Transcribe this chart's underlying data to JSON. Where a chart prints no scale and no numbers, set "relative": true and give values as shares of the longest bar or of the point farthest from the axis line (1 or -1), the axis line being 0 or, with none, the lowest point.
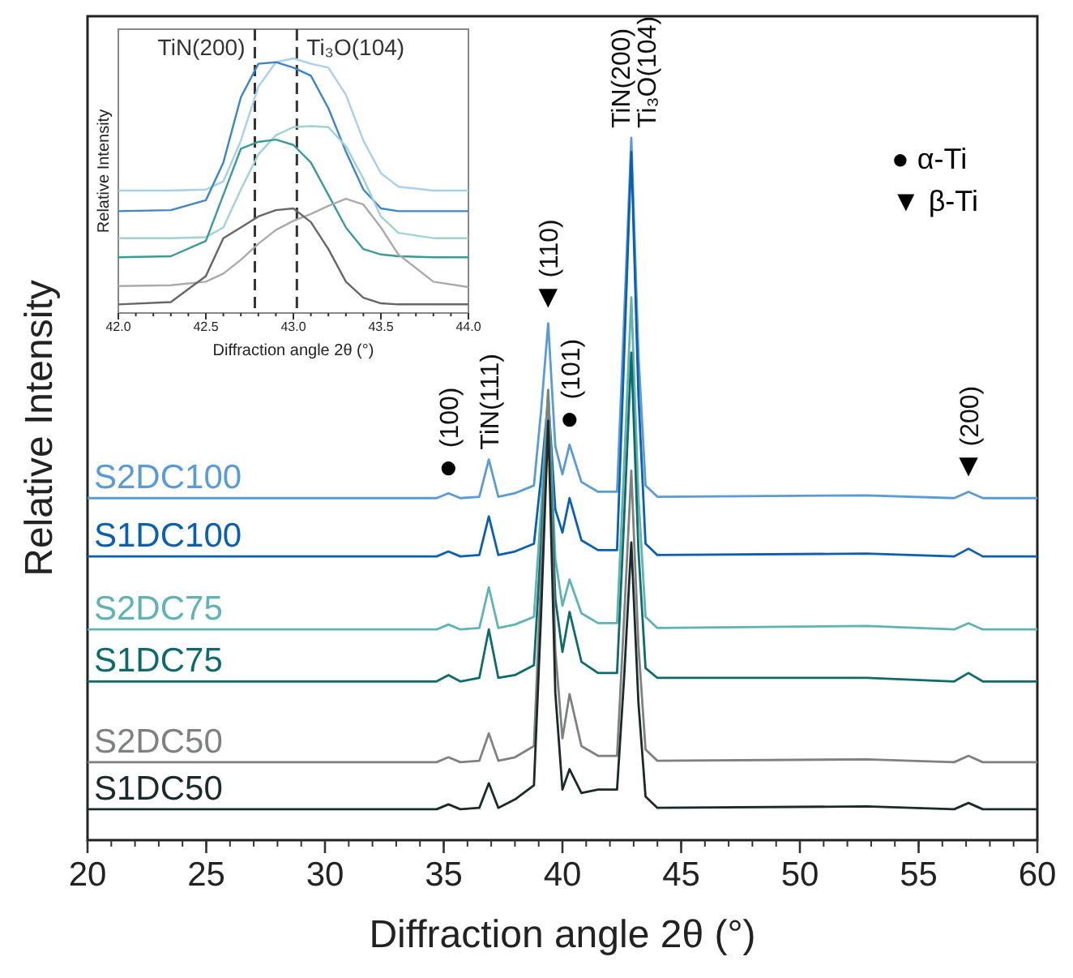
{
  "chart_data": [
    {
      "type": "line",
      "xlabel": "Diffraction angle 2θ (°)",
      "ylabel": "Relative Intensity",
      "relative": true,
      "xlim": [
        20,
        60
      ],
      "xticks": [
        20,
        25,
        30,
        35,
        40,
        45,
        50,
        55,
        60
      ],
      "x": [
        20,
        34.7,
        35.2,
        35.7,
        36.5,
        36.9,
        37.3,
        38.0,
        38.8,
        39.1,
        39.4,
        39.7,
        40.0,
        40.3,
        40.8,
        41.5,
        42.3,
        42.6,
        42.9,
        43.2,
        43.5,
        44.0,
        52.8,
        56.5,
        57.1,
        57.7,
        60
      ],
      "series": [
        {
          "name": "S2DC100",
          "color": "#5b9bd5",
          "values": [
            0.487,
            0.487,
            0.494,
            0.487,
            0.489,
            0.542,
            0.489,
            0.494,
            0.505,
            0.611,
            0.736,
            0.561,
            0.521,
            0.563,
            0.51,
            0.496,
            0.496,
            0.745,
            1.0,
            0.692,
            0.505,
            0.489,
            0.491,
            0.487,
            0.496,
            0.487,
            0.487
          ]
        },
        {
          "name": "S1DC100",
          "color": "#0b5fb0",
          "values": [
            0.404,
            0.404,
            0.411,
            0.404,
            0.406,
            0.461,
            0.406,
            0.411,
            0.422,
            0.517,
            0.63,
            0.471,
            0.438,
            0.487,
            0.427,
            0.413,
            0.413,
            0.692,
            0.98,
            0.634,
            0.422,
            0.406,
            0.408,
            0.404,
            0.415,
            0.404,
            0.404
          ]
        },
        {
          "name": "S2DC75",
          "color": "#5fb3b3",
          "values": [
            0.3,
            0.3,
            0.307,
            0.3,
            0.302,
            0.36,
            0.302,
            0.307,
            0.318,
            0.471,
            0.641,
            0.401,
            0.334,
            0.371,
            0.323,
            0.309,
            0.309,
            0.535,
            0.773,
            0.489,
            0.318,
            0.302,
            0.305,
            0.3,
            0.309,
            0.3,
            0.3
          ]
        },
        {
          "name": "S1DC75",
          "color": "#0e6b6b",
          "values": [
            0.226,
            0.226,
            0.235,
            0.226,
            0.231,
            0.3,
            0.231,
            0.235,
            0.249,
            0.422,
            0.618,
            0.344,
            0.268,
            0.325,
            0.254,
            0.238,
            0.238,
            0.459,
            0.694,
            0.413,
            0.245,
            0.231,
            0.231,
            0.226,
            0.238,
            0.226,
            0.226
          ]
        },
        {
          "name": "S2DC50",
          "color": "#7f8080",
          "values": [
            0.111,
            0.111,
            0.118,
            0.111,
            0.113,
            0.152,
            0.113,
            0.118,
            0.134,
            0.376,
            0.641,
            0.27,
            0.145,
            0.208,
            0.134,
            0.12,
            0.12,
            0.318,
            0.526,
            0.277,
            0.129,
            0.113,
            0.115,
            0.111,
            0.12,
            0.111,
            0.111
          ]
        },
        {
          "name": "S1DC50",
          "color": "#1a2a2a",
          "values": [
            0.044,
            0.044,
            0.051,
            0.044,
            0.046,
            0.081,
            0.046,
            0.058,
            0.078,
            0.321,
            0.597,
            0.21,
            0.072,
            0.101,
            0.067,
            0.072,
            0.072,
            0.233,
            0.424,
            0.196,
            0.062,
            0.046,
            0.048,
            0.044,
            0.053,
            0.044,
            0.044
          ]
        }
      ],
      "annotations": [
        {
          "text": "●",
          "x": 35.2,
          "y": 0.494
        },
        {
          "text": "(100)",
          "x": 35.2,
          "y": 0.494
        },
        {
          "text": "TiN(111)",
          "x": 36.9,
          "y": 0.542
        },
        {
          "text": "▼",
          "x": 39.4,
          "y": 0.736
        },
        {
          "text": "(110)",
          "x": 39.4,
          "y": 0.736
        },
        {
          "text": "●",
          "x": 40.3,
          "y": 0.563
        },
        {
          "text": "(101)",
          "x": 40.3,
          "y": 0.563
        },
        {
          "text": "TiN(200)",
          "x": 42.9,
          "y": 1.0
        },
        {
          "text": "Ti₃O(104)",
          "x": 42.9,
          "y": 1.0
        },
        {
          "text": "▼",
          "x": 57.1,
          "y": 0.496
        },
        {
          "text": "(200)",
          "x": 57.1,
          "y": 0.496
        },
        "● α-Ti",
        "▼ β-Ti"
      ]
    },
    {
      "type": "line",
      "xlabel": "Diffraction angle 2θ (°)",
      "ylabel": "Relative Intensity",
      "relative": true,
      "xlim": [
        42,
        44
      ],
      "xticks": [
        {
          "value": 42,
          "label": "42.0"
        },
        {
          "value": 42.5,
          "label": "42.5"
        },
        {
          "value": 43,
          "label": "43.0"
        },
        {
          "value": 43.5,
          "label": "43.5"
        },
        {
          "value": 44,
          "label": "44.0"
        }
      ],
      "x": [
        42,
        42.3,
        42.5,
        42.6,
        42.7,
        42.8,
        42.9,
        43.0,
        43.1,
        43.2,
        43.3,
        43.4,
        43.5,
        43.6,
        43.8,
        44
      ],
      "ref_lines": [
        {
          "axis": "x",
          "value": 42.78,
          "label": "TiN(200)",
          "line_style": "dashed"
        },
        {
          "axis": "x",
          "value": 43.02,
          "label": "Ti₃O(104)",
          "line_style": "dashed"
        }
      ],
      "series": [
        {
          "color": "#a9cfee",
          "values": [
            0.481,
            0.481,
            0.485,
            0.517,
            0.677,
            0.889,
            0.985,
            1.0,
            0.979,
            0.964,
            0.857,
            0.677,
            0.549,
            0.496,
            0.481,
            0.481
          ]
        },
        {
          "color": "#3d85c6",
          "values": [
            0.4,
            0.404,
            0.443,
            0.591,
            0.847,
            0.979,
            0.985,
            0.964,
            0.932,
            0.804,
            0.634,
            0.485,
            0.411,
            0.4,
            0.4,
            0.4
          ]
        },
        {
          "color": "#9fd3d3",
          "values": [
            0.294,
            0.294,
            0.298,
            0.336,
            0.485,
            0.623,
            0.698,
            0.73,
            0.734,
            0.73,
            0.655,
            0.528,
            0.379,
            0.315,
            0.294,
            0.294
          ]
        },
        {
          "color": "#3a9a9a",
          "values": [
            0.219,
            0.223,
            0.283,
            0.464,
            0.645,
            0.672,
            0.681,
            0.66,
            0.591,
            0.464,
            0.336,
            0.251,
            0.23,
            0.223,
            0.219,
            0.219
          ]
        },
        {
          "color": "#aaaaaa",
          "values": [
            0.106,
            0.109,
            0.123,
            0.155,
            0.209,
            0.272,
            0.326,
            0.362,
            0.389,
            0.421,
            0.449,
            0.426,
            0.336,
            0.23,
            0.123,
            0.102
          ]
        },
        {
          "color": "#666666",
          "values": [
            0.034,
            0.043,
            0.145,
            0.294,
            0.336,
            0.379,
            0.404,
            0.411,
            0.357,
            0.251,
            0.123,
            0.06,
            0.038,
            0.034,
            0.034,
            0.034
          ]
        }
      ]
    }
  ]
}
